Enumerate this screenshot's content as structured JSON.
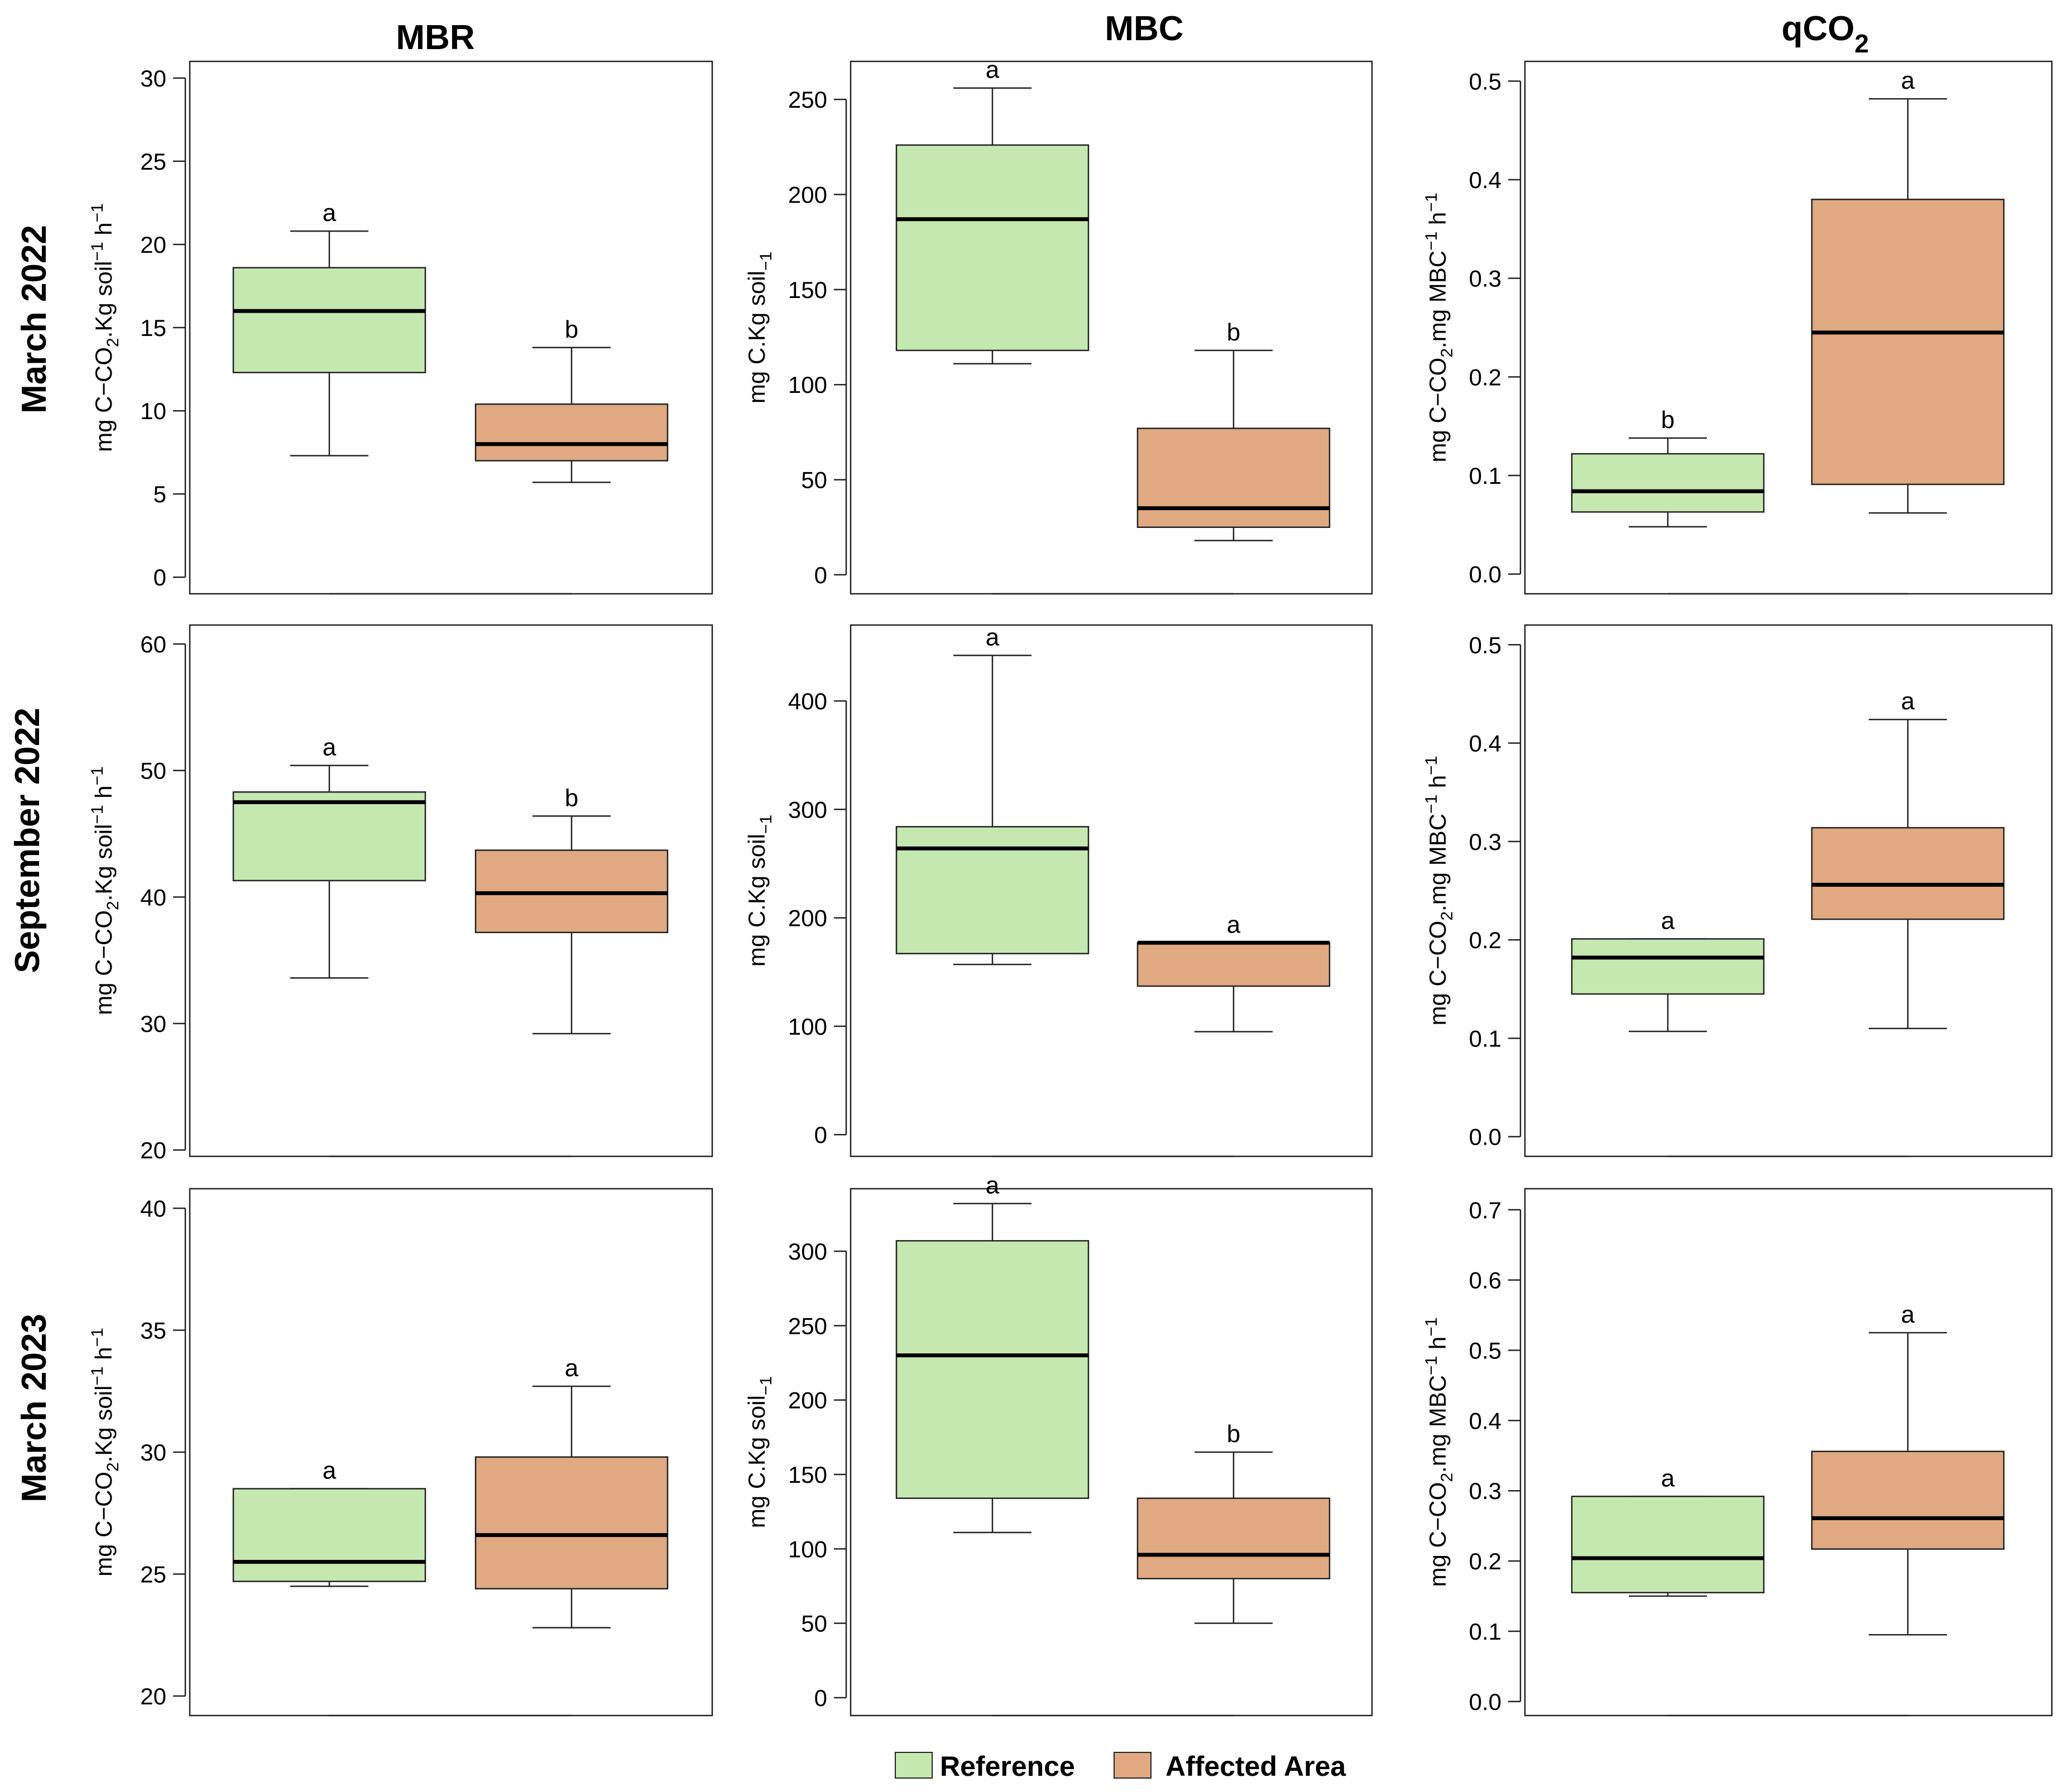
{
  "figure": {
    "column_titles": [
      "MBR",
      "MBC",
      "qCO2"
    ],
    "column_title_parts": {
      "qco2_main": "qCO",
      "qco2_sub": "2"
    },
    "row_titles": [
      "March 2022",
      "September 2022",
      "March 2023"
    ],
    "legend": [
      {
        "label": "Reference",
        "color": "#c5e8b0"
      },
      {
        "label": "Affected Area",
        "color": "#e0a982"
      }
    ],
    "ylabels": {
      "mbr": {
        "p1": "mg C−CO",
        "s1": "2",
        "p2": ".Kg soil",
        "s2": "−1",
        "p3": " h",
        "s3": "−1"
      },
      "mbc": {
        "p1": "mg C.Kg soil",
        "s1": "−1"
      },
      "qco2": {
        "p1": "mg C−CO",
        "s1": "2",
        "p2": ".mg MBC",
        "s2": "−1",
        "p3": " h",
        "s3": "−1"
      }
    },
    "colors": {
      "reference": "#c5e8b0",
      "affected": "#e0a982",
      "stroke": "#222222",
      "median": "#000000"
    }
  },
  "chart_data": [
    {
      "id": "mbr-mar2022",
      "type": "box",
      "row": "March 2022",
      "column": "MBR",
      "ylim": [
        -1,
        31
      ],
      "yticks": [
        0,
        5,
        10,
        15,
        20,
        25,
        30
      ],
      "tick_labels": [
        "0",
        "5",
        "10",
        "15",
        "20",
        "25",
        "30"
      ],
      "groups": [
        {
          "name": "Reference",
          "min": 7.3,
          "q1": 12.3,
          "median": 16.0,
          "q3": 18.6,
          "max": 20.8,
          "letter": "a"
        },
        {
          "name": "Affected Area",
          "min": 5.7,
          "q1": 7.0,
          "median": 8.0,
          "q3": 10.4,
          "max": 13.8,
          "letter": "b"
        }
      ]
    },
    {
      "id": "mbc-mar2022",
      "type": "box",
      "row": "March 2022",
      "column": "MBC",
      "ylim": [
        -10,
        270
      ],
      "yticks": [
        0,
        50,
        100,
        150,
        200,
        250
      ],
      "tick_labels": [
        "0",
        "50",
        "100",
        "150",
        "200",
        "250"
      ],
      "groups": [
        {
          "name": "Reference",
          "min": 111,
          "q1": 118,
          "median": 187,
          "q3": 226,
          "max": 256,
          "letter": "a"
        },
        {
          "name": "Affected Area",
          "min": 18,
          "q1": 25,
          "median": 35,
          "q3": 77,
          "max": 118,
          "letter": "b"
        }
      ]
    },
    {
      "id": "qco2-mar2022",
      "type": "box",
      "row": "March 2022",
      "column": "qCO2",
      "ylim": [
        -0.02,
        0.52
      ],
      "yticks": [
        0.0,
        0.1,
        0.2,
        0.3,
        0.4,
        0.5
      ],
      "tick_labels": [
        "0.0",
        "0.1",
        "0.2",
        "0.3",
        "0.4",
        "0.5"
      ],
      "groups": [
        {
          "name": "Reference",
          "min": 0.048,
          "q1": 0.063,
          "median": 0.084,
          "q3": 0.122,
          "max": 0.138,
          "letter": "b"
        },
        {
          "name": "Affected Area",
          "min": 0.062,
          "q1": 0.091,
          "median": 0.245,
          "q3": 0.38,
          "max": 0.482,
          "letter": "a"
        }
      ]
    },
    {
      "id": "mbr-sep2022",
      "type": "box",
      "row": "September 2022",
      "column": "MBR",
      "ylim": [
        19.5,
        61.5
      ],
      "yticks": [
        20,
        30,
        40,
        50,
        60
      ],
      "tick_labels": [
        "20",
        "30",
        "40",
        "50",
        "60"
      ],
      "groups": [
        {
          "name": "Reference",
          "min": 33.6,
          "q1": 41.3,
          "median": 47.5,
          "q3": 48.3,
          "max": 50.4,
          "letter": "a"
        },
        {
          "name": "Affected Area",
          "min": 29.2,
          "q1": 37.2,
          "median": 40.3,
          "q3": 43.7,
          "max": 46.4,
          "letter": "b"
        }
      ]
    },
    {
      "id": "mbc-sep2022",
      "type": "box",
      "row": "September 2022",
      "column": "MBC",
      "ylim": [
        -20,
        470
      ],
      "yticks": [
        0,
        100,
        200,
        300,
        400
      ],
      "tick_labels": [
        "0",
        "100",
        "200",
        "300",
        "400"
      ],
      "groups": [
        {
          "name": "Reference",
          "min": 157,
          "q1": 167,
          "median": 264,
          "q3": 284,
          "max": 442,
          "letter": "a"
        },
        {
          "name": "Affected Area",
          "min": 95,
          "q1": 137,
          "median": 177,
          "q3": 177,
          "max": 177,
          "letter": "a"
        }
      ]
    },
    {
      "id": "qco2-sep2022",
      "type": "box",
      "row": "September 2022",
      "column": "qCO2",
      "ylim": [
        -0.02,
        0.52
      ],
      "yticks": [
        0.0,
        0.1,
        0.2,
        0.3,
        0.4,
        0.5
      ],
      "tick_labels": [
        "0.0",
        "0.1",
        "0.2",
        "0.3",
        "0.4",
        "0.5"
      ],
      "groups": [
        {
          "name": "Reference",
          "min": 0.107,
          "q1": 0.145,
          "median": 0.182,
          "q3": 0.201,
          "max": 0.201,
          "letter": "a"
        },
        {
          "name": "Affected Area",
          "min": 0.11,
          "q1": 0.221,
          "median": 0.256,
          "q3": 0.314,
          "max": 0.424,
          "letter": "a"
        }
      ]
    },
    {
      "id": "mbr-mar2023",
      "type": "box",
      "row": "March 2023",
      "column": "MBR",
      "ylim": [
        19.2,
        40.8
      ],
      "yticks": [
        20,
        25,
        30,
        35,
        40
      ],
      "tick_labels": [
        "20",
        "25",
        "30",
        "35",
        "40"
      ],
      "groups": [
        {
          "name": "Reference",
          "min": 24.5,
          "q1": 24.7,
          "median": 25.5,
          "q3": 28.5,
          "max": 28.5,
          "letter": "a"
        },
        {
          "name": "Affected Area",
          "min": 22.8,
          "q1": 24.4,
          "median": 26.6,
          "q3": 29.8,
          "max": 32.7,
          "letter": "a"
        }
      ]
    },
    {
      "id": "mbc-mar2023",
      "type": "box",
      "row": "March 2023",
      "column": "MBC",
      "ylim": [
        -12,
        342
      ],
      "yticks": [
        0,
        50,
        100,
        150,
        200,
        250,
        300
      ],
      "tick_labels": [
        "0",
        "50",
        "100",
        "150",
        "200",
        "250",
        "300"
      ],
      "groups": [
        {
          "name": "Reference",
          "min": 111,
          "q1": 134,
          "median": 230,
          "q3": 307,
          "max": 332,
          "letter": "a"
        },
        {
          "name": "Affected Area",
          "min": 50,
          "q1": 80,
          "median": 96,
          "q3": 134,
          "max": 165,
          "letter": "b"
        }
      ]
    },
    {
      "id": "qco2-mar2023",
      "type": "box",
      "row": "March 2023",
      "column": "qCO2",
      "ylim": [
        -0.02,
        0.73
      ],
      "yticks": [
        0.0,
        0.1,
        0.2,
        0.3,
        0.4,
        0.5,
        0.6,
        0.7
      ],
      "tick_labels": [
        "0.0",
        "0.1",
        "0.2",
        "0.3",
        "0.4",
        "0.5",
        "0.6",
        "0.7"
      ],
      "groups": [
        {
          "name": "Reference",
          "min": 0.15,
          "q1": 0.155,
          "median": 0.204,
          "q3": 0.292,
          "max": 0.292,
          "letter": "a"
        },
        {
          "name": "Affected Area",
          "min": 0.095,
          "q1": 0.217,
          "median": 0.261,
          "q3": 0.356,
          "max": 0.525,
          "letter": "a"
        }
      ]
    }
  ]
}
